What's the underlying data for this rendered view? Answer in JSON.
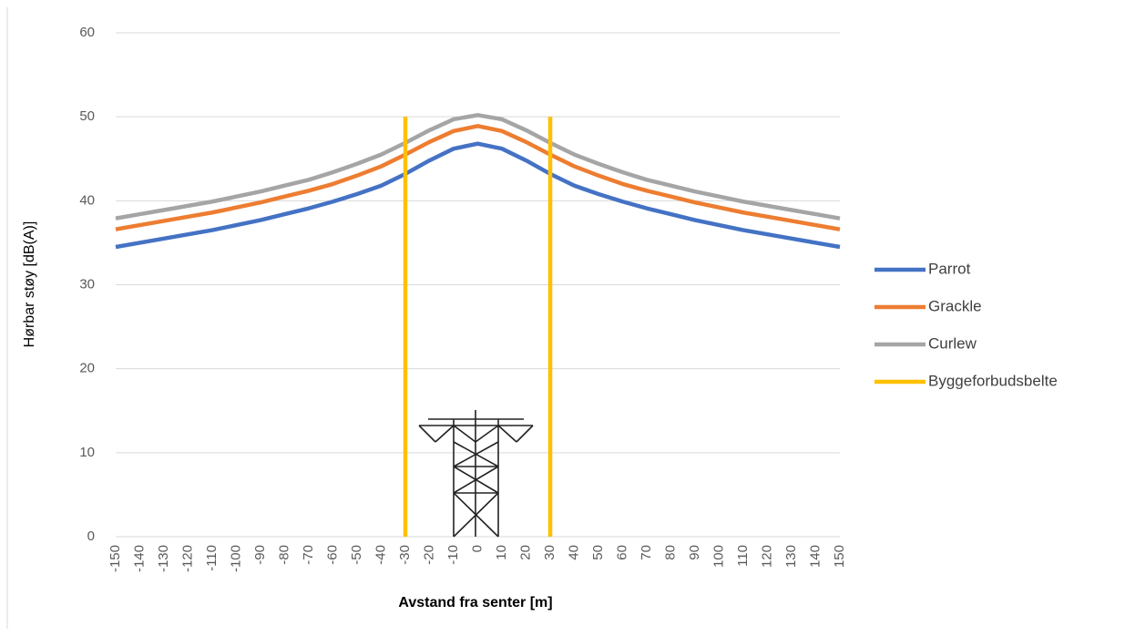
{
  "chart_data": {
    "type": "line",
    "x_label": "Avstand fra senter [m]",
    "y_label": "Hørbar støy [dB(A)]",
    "x": [
      -150,
      -140,
      -130,
      -120,
      -110,
      -100,
      -90,
      -80,
      -70,
      -60,
      -50,
      -40,
      -30,
      -20,
      -10,
      0,
      10,
      20,
      30,
      40,
      50,
      60,
      70,
      80,
      90,
      100,
      110,
      120,
      130,
      140,
      150
    ],
    "xlim": [
      -150,
      150
    ],
    "xticks": [
      -150,
      -140,
      -130,
      -120,
      -110,
      -100,
      -90,
      -80,
      -70,
      -60,
      -50,
      -40,
      -30,
      -20,
      -10,
      0,
      10,
      20,
      30,
      40,
      50,
      60,
      70,
      80,
      90,
      100,
      110,
      120,
      130,
      140,
      150
    ],
    "ylim": [
      0,
      60
    ],
    "yticks": [
      0,
      10,
      20,
      30,
      40,
      50,
      60
    ],
    "grid": true,
    "legend": "right",
    "series": [
      {
        "name": "Parrot",
        "color": "#4472c4",
        "values": [
          34.5,
          35.0,
          35.5,
          36.0,
          36.5,
          37.1,
          37.7,
          38.4,
          39.1,
          39.9,
          40.8,
          41.8,
          43.2,
          44.8,
          46.2,
          46.8,
          46.2,
          44.8,
          43.2,
          41.8,
          40.8,
          39.9,
          39.1,
          38.4,
          37.7,
          37.1,
          36.5,
          36.0,
          35.5,
          35.0,
          34.5
        ]
      },
      {
        "name": "Grackle",
        "color": "#ed7d31",
        "values": [
          36.6,
          37.1,
          37.6,
          38.1,
          38.6,
          39.2,
          39.8,
          40.5,
          41.2,
          42.0,
          43.0,
          44.1,
          45.5,
          47.0,
          48.3,
          48.9,
          48.3,
          47.0,
          45.5,
          44.1,
          43.0,
          42.0,
          41.2,
          40.5,
          39.8,
          39.2,
          38.6,
          38.1,
          37.6,
          37.1,
          36.6
        ]
      },
      {
        "name": "Curlew",
        "color": "#a5a5a5",
        "values": [
          37.9,
          38.4,
          38.9,
          39.4,
          39.9,
          40.5,
          41.1,
          41.8,
          42.5,
          43.4,
          44.4,
          45.5,
          46.9,
          48.4,
          49.7,
          50.2,
          49.7,
          48.4,
          46.9,
          45.5,
          44.4,
          43.4,
          42.5,
          41.8,
          41.1,
          40.5,
          39.9,
          39.4,
          38.9,
          38.4,
          37.9
        ]
      },
      {
        "name": "Byggeforbudsbelte",
        "color": "#ffc000",
        "x": [
          -30,
          -30,
          30,
          30,
          30
        ],
        "values": [
          0,
          50,
          null,
          0,
          50
        ]
      }
    ]
  }
}
